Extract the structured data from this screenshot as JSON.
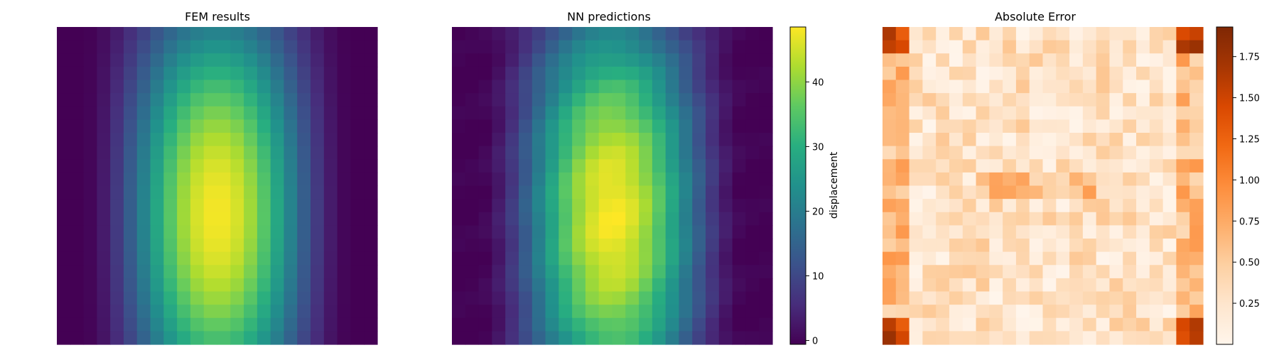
{
  "chart_data": [
    {
      "type": "heatmap",
      "title": "FEM results",
      "grid": [
        24,
        24
      ],
      "colormap": "viridis",
      "value_range": [
        0,
        48.5
      ],
      "field": "displacement",
      "axes_visible": false
    },
    {
      "type": "heatmap",
      "title": "NN predictions",
      "grid": [
        24,
        24
      ],
      "colormap": "viridis",
      "value_range": [
        0,
        48.5
      ],
      "field": "displacement",
      "axes_visible": false,
      "colorbar": {
        "label": "displacement",
        "range": [
          -0.6,
          48.5
        ],
        "ticks": [
          0,
          10,
          20,
          30,
          40
        ],
        "tick_labels": [
          "0",
          "10",
          "20",
          "30",
          "40"
        ]
      }
    },
    {
      "type": "heatmap",
      "title": "Absolute Error",
      "grid": [
        24,
        24
      ],
      "colormap": "Oranges",
      "value_range": [
        0,
        1.93
      ],
      "axes_visible": false,
      "colorbar": {
        "label": "",
        "range": [
          0,
          1.93
        ],
        "ticks": [
          0.25,
          0.5,
          0.75,
          1.0,
          1.25,
          1.5,
          1.75
        ],
        "tick_labels": [
          "0.25",
          "0.50",
          "0.75",
          "1.00",
          "1.25",
          "1.50",
          "1.75"
        ]
      }
    }
  ]
}
